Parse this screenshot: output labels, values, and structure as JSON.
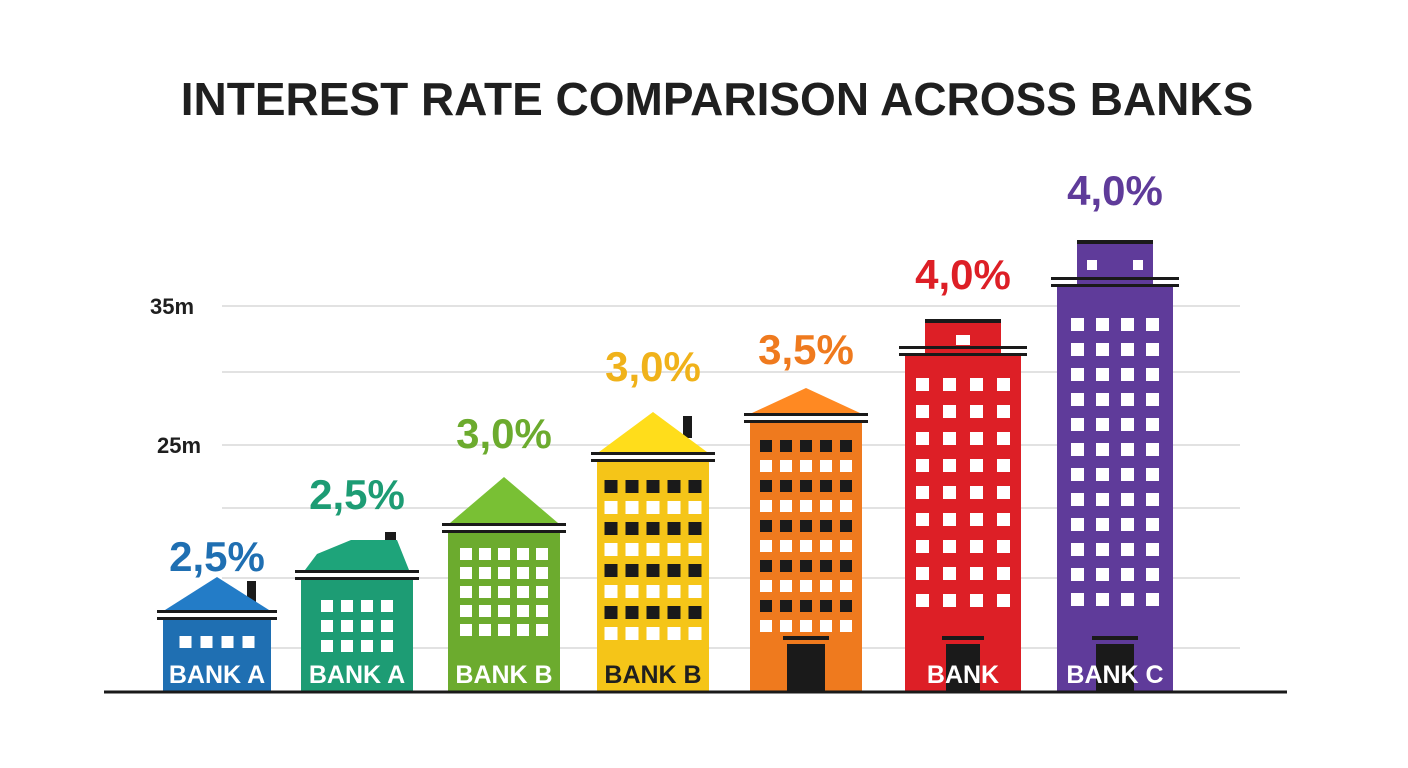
{
  "chart_data": {
    "type": "bar",
    "title": "INTEREST RATE COMPARISON ACROSS BANKS",
    "xlabel": "",
    "ylabel": "",
    "y_ticks": [
      "25m",
      "35m"
    ],
    "grid": true,
    "categories": [
      "BANK A",
      "BANK A",
      "BANK B",
      "BANK B",
      "",
      "BANK",
      "BANK C"
    ],
    "values": [
      2.5,
      2.5,
      3.0,
      3.0,
      3.5,
      4.0,
      4.0
    ],
    "value_labels": [
      "2,5%",
      "2,5%",
      "3,0%",
      "3,0%",
      "3,5%",
      "4,0%",
      "4,0%"
    ],
    "bar_colors": [
      "#1f6fb2",
      "#1d9c74",
      "#6cab2e",
      "#f5c518",
      "#ef7a1e",
      "#dd1f26",
      "#5f3b9a"
    ],
    "label_colors": [
      "#1f6fb2",
      "#1d9c74",
      "#6cab2e",
      "#f0b21a",
      "#ef7a1e",
      "#dd1f26",
      "#5f3b9a"
    ],
    "bank_text_colors": [
      "#ffffff",
      "#ffffff",
      "#ffffff",
      "#1f1f1f",
      "#ffffff",
      "#ffffff",
      "#ffffff"
    ]
  }
}
